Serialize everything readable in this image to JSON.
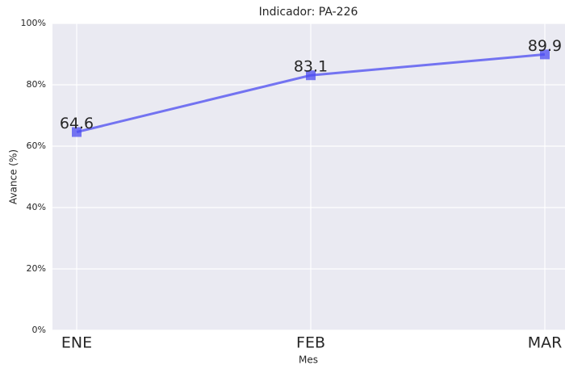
{
  "chart_data": {
    "type": "line",
    "title": "Indicador: PA-226",
    "xlabel": "Mes",
    "ylabel": "Avance (%)",
    "categories": [
      "ENE",
      "FEB",
      "MAR"
    ],
    "series": [
      {
        "name": "PA-226",
        "color": "#4b4bf0",
        "values": [
          64.6,
          83.1,
          89.9
        ]
      }
    ],
    "ylim": [
      0,
      100
    ],
    "yticks": [
      {
        "value": 0,
        "label": "0%"
      },
      {
        "value": 20,
        "label": "20%"
      },
      {
        "value": 40,
        "label": "40%"
      },
      {
        "value": 60,
        "label": "60%"
      },
      {
        "value": 80,
        "label": "80%"
      },
      {
        "value": 100,
        "label": "100%"
      }
    ],
    "grid": true
  }
}
